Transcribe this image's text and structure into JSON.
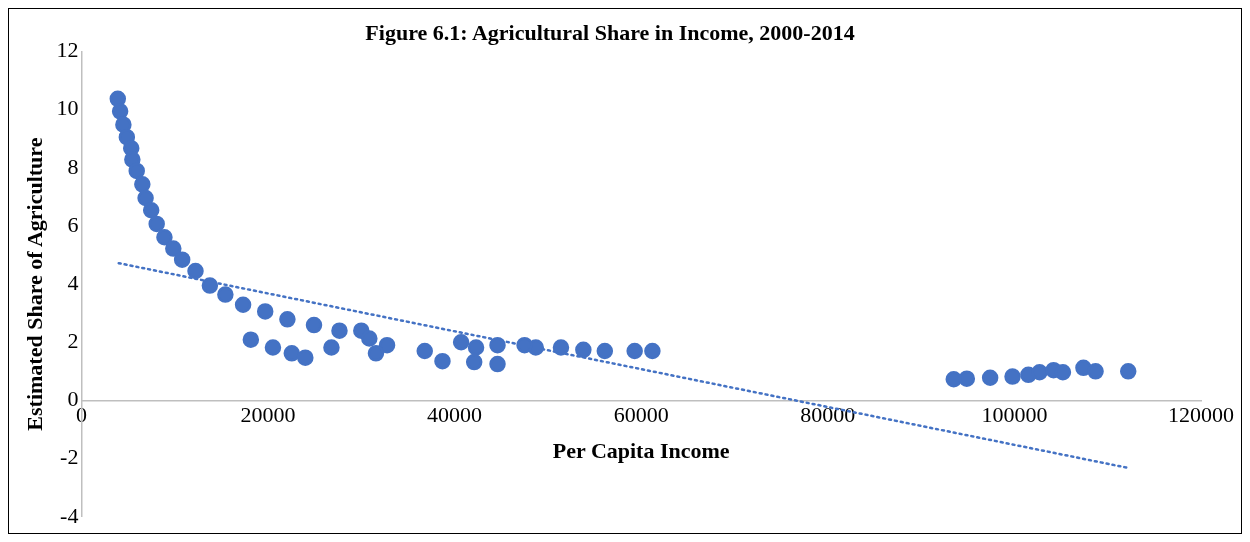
{
  "chart_data": {
    "type": "scatter",
    "title": "Figure 6.1: Agricultural Share in Income, 2000-2014",
    "xlabel": "Per Capita Income",
    "ylabel": "Estimated Share of Agriculture",
    "xlim": [
      0,
      120000
    ],
    "xticks": [
      0,
      20000,
      40000,
      60000,
      80000,
      100000,
      120000
    ],
    "ylim": [
      -4,
      12
    ],
    "yticks": [
      -4,
      -2,
      0,
      2,
      4,
      6,
      8,
      10,
      12
    ],
    "grid": false,
    "legend": false,
    "series": [
      {
        "type": "scatter",
        "color": "#4472c4",
        "marker": "circle",
        "x": [
          3900,
          4150,
          4500,
          4870,
          5340,
          5460,
          5930,
          6530,
          6880,
          7480,
          8070,
          8900,
          9850,
          10800,
          12230,
          13770,
          15430,
          17330,
          19700,
          22080,
          24930,
          27660,
          30000,
          30860,
          32760,
          36800,
          42300,
          44600,
          48700,
          18160,
          20530,
          22550,
          24000,
          26800,
          31570,
          38700,
          42100,
          44600,
          40700,
          47500,
          51400,
          53800,
          56100,
          59300,
          61200,
          93500,
          94900,
          97400,
          99800,
          101500,
          102700,
          104200,
          105200,
          107400,
          108700,
          112200
        ],
        "values": [
          10.37,
          9.94,
          9.48,
          9.05,
          8.67,
          8.28,
          7.89,
          7.43,
          6.96,
          6.54,
          6.07,
          5.61,
          5.22,
          4.84,
          4.45,
          3.95,
          3.64,
          3.29,
          3.06,
          2.79,
          2.59,
          2.4,
          2.4,
          2.13,
          1.9,
          1.7,
          1.82,
          1.9,
          1.82,
          2.09,
          1.82,
          1.62,
          1.47,
          1.82,
          1.62,
          1.35,
          1.32,
          1.25,
          2.0,
          1.9,
          1.82,
          1.74,
          1.7,
          1.7,
          1.7,
          0.73,
          0.75,
          0.78,
          0.82,
          0.88,
          0.97,
          1.04,
          0.97,
          1.12,
          1.0,
          1.0
        ]
      },
      {
        "type": "line",
        "color": "#4472c4",
        "line_style": "dotted",
        "marker": "none",
        "x": [
          4000,
          112200
        ],
        "values": [
          4.72,
          -2.32
        ]
      }
    ]
  }
}
